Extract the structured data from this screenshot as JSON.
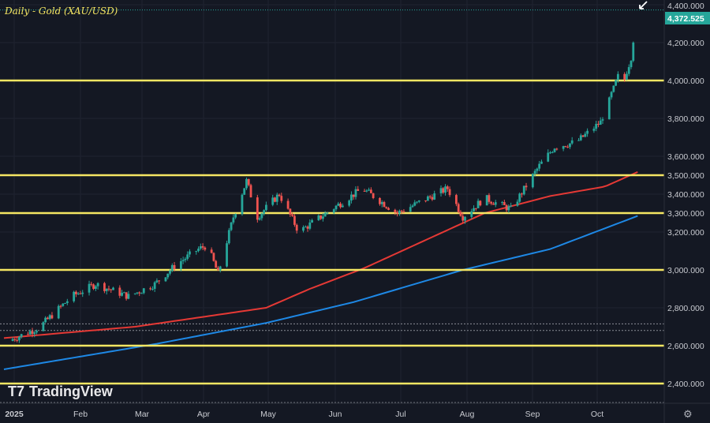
{
  "title": "Daily - Gold (XAU/USD)",
  "logo": "TradingView",
  "current_price_label": "4,372.525",
  "colors": {
    "up": "#26a69a",
    "down": "#ef5350",
    "level": "#f5e663",
    "ma_fast": "#e53935",
    "ma_slow": "#1e88e5",
    "bg": "#141823",
    "price_tag": "#26a69a"
  },
  "chart_data": {
    "type": "candlestick",
    "title": "Daily - Gold (XAU/USD)",
    "x_tick_labels": [
      "2025",
      "Feb",
      "Mar",
      "Apr",
      "May",
      "Jun",
      "Jul",
      "Aug",
      "Sep",
      "Oct"
    ],
    "y_tick_labels": [
      "4,400.000",
      "4,200.000",
      "4,000.000",
      "3,800.000",
      "3,600.000",
      "3,500.000",
      "3,400.000",
      "3,300.000",
      "3,200.000",
      "3,000.000",
      "2,800.000",
      "2,600.000",
      "2,400.000"
    ],
    "y_ticks": [
      4400,
      4200,
      4000,
      3800,
      3600,
      3500,
      3400,
      3300,
      3200,
      3000,
      2800,
      2600,
      2400
    ],
    "ylim": [
      2340,
      4425
    ],
    "horizontal_levels": [
      4000,
      3500,
      3300,
      3000,
      2600,
      2400
    ],
    "dotted_levels": [
      2715,
      2680
    ],
    "last_price": 4372.525,
    "close_anchors_day_price": [
      [
        2,
        2625
      ],
      [
        16,
        2695
      ],
      [
        31,
        2860
      ],
      [
        42,
        2925
      ],
      [
        57,
        2860
      ],
      [
        69,
        2925
      ],
      [
        79,
        3030
      ],
      [
        89,
        3110
      ],
      [
        93,
        3130
      ],
      [
        98,
        2980
      ],
      [
        105,
        3280
      ],
      [
        111,
        3470
      ],
      [
        116,
        3280
      ],
      [
        126,
        3400
      ],
      [
        135,
        3200
      ],
      [
        150,
        3320
      ],
      [
        164,
        3430
      ],
      [
        180,
        3300
      ],
      [
        203,
        3430
      ],
      [
        210,
        3280
      ],
      [
        220,
        3380
      ],
      [
        232,
        3320
      ],
      [
        245,
        3550
      ],
      [
        252,
        3650
      ],
      [
        262,
        3675
      ],
      [
        273,
        3780
      ],
      [
        281,
        4030
      ],
      [
        283,
        3970
      ],
      [
        287,
        4110
      ],
      [
        289,
        4300
      ],
      [
        290,
        4372
      ]
    ],
    "ma_fast_anchors_day_price": [
      [
        0,
        2640
      ],
      [
        60,
        2700
      ],
      [
        120,
        2800
      ],
      [
        140,
        2900
      ],
      [
        165,
        3010
      ],
      [
        220,
        3300
      ],
      [
        250,
        3390
      ],
      [
        275,
        3440
      ],
      [
        290,
        3517
      ]
    ],
    "ma_slow_anchors_day_price": [
      [
        0,
        2475
      ],
      [
        70,
        2610
      ],
      [
        120,
        2720
      ],
      [
        160,
        2830
      ],
      [
        210,
        3000
      ],
      [
        250,
        3110
      ],
      [
        290,
        3285
      ]
    ]
  }
}
